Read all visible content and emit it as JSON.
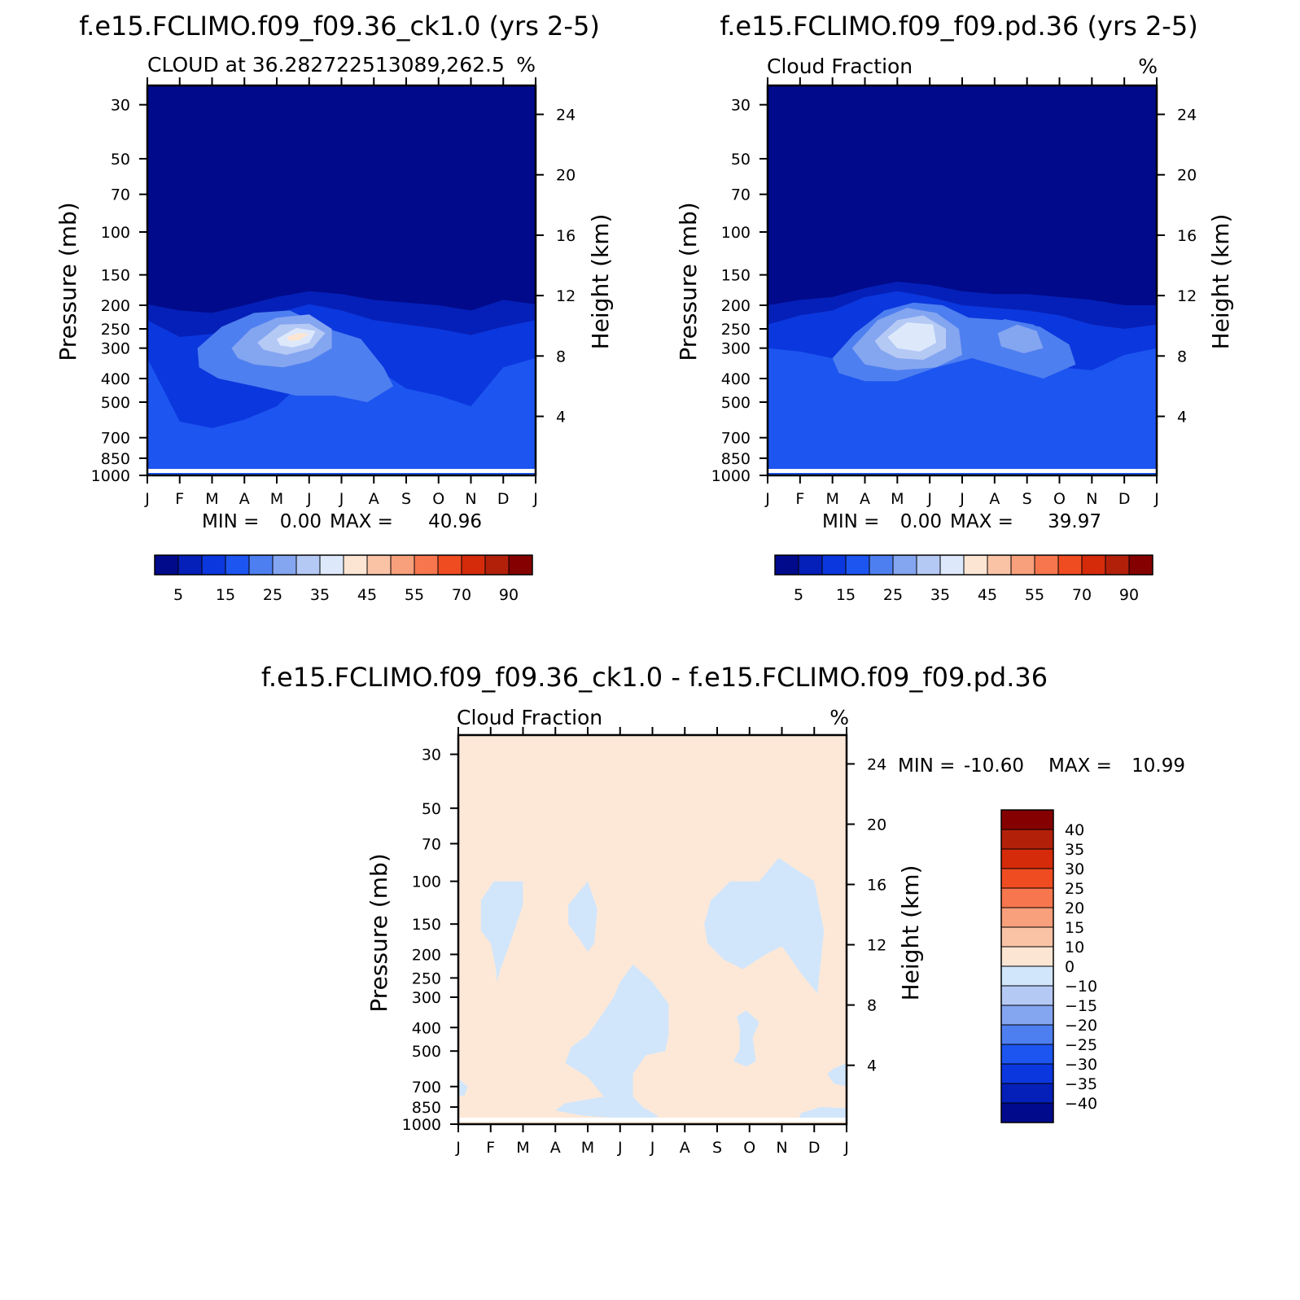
{
  "chart_data": [
    {
      "type": "heatmap",
      "title": "f.e15.FCLIMO.f09_f09.36_ck1.0 (yrs 2-5)",
      "subtitle_left": "CLOUD at 36.282722513089,262.5",
      "units": "%",
      "xlabel": "",
      "ylabel_left": "Pressure (mb)",
      "ylabel_right": "Height (km)",
      "x_ticks": [
        "J",
        "F",
        "M",
        "A",
        "M",
        "J",
        "J",
        "A",
        "S",
        "O",
        "N",
        "D",
        "J"
      ],
      "pressure_ticks": [
        "30",
        "50",
        "70",
        "100",
        "150",
        "200",
        "250",
        "300",
        "400",
        "500",
        "700",
        "850",
        "1000"
      ],
      "height_ticks": [
        "24",
        "20",
        "16",
        "12",
        "8",
        "4"
      ],
      "min_label": "MIN =",
      "min_value": "0.00",
      "max_label": "MAX =",
      "max_value": "40.96",
      "colorbar_labels": [
        "5",
        "15",
        "25",
        "35",
        "45",
        "55",
        "70",
        "90"
      ],
      "layers": [
        {
          "level": 5,
          "cycle": false,
          "p": [
            198,
            210,
            215,
            200,
            185,
            175,
            180,
            190,
            195,
            200,
            210,
            190,
            198
          ]
        },
        {
          "level": 10,
          "cycle": false,
          "p": [
            230,
            270,
            262,
            235,
            215,
            198,
            210,
            230,
            240,
            250,
            265,
            245,
            230
          ]
        },
        {
          "level": 15,
          "cycle": false,
          "p": [
            330,
            600,
            640,
            590,
            520,
            390,
            330,
            360,
            440,
            470,
            520,
            360,
            330
          ]
        },
        {
          "level": 20,
          "cycle": true,
          "pts": [
            [
              1.55,
              300
            ],
            [
              2.3,
              245
            ],
            [
              3.3,
              215
            ],
            [
              4.4,
              210
            ],
            [
              5.6,
              250
            ],
            [
              6.6,
              275
            ],
            [
              7.3,
              360
            ],
            [
              7.6,
              430
            ],
            [
              6.8,
              500
            ],
            [
              5.8,
              470
            ],
            [
              4.6,
              470
            ],
            [
              3.3,
              430
            ],
            [
              2.2,
              400
            ],
            [
              1.6,
              360
            ]
          ]
        },
        {
          "level": 25,
          "cycle": true,
          "pts": [
            [
              2.6,
              300
            ],
            [
              3.2,
              250
            ],
            [
              4.0,
              225
            ],
            [
              5.0,
              218
            ],
            [
              5.7,
              250
            ],
            [
              5.7,
              300
            ],
            [
              5.0,
              340
            ],
            [
              4.2,
              360
            ],
            [
              3.3,
              350
            ],
            [
              2.8,
              330
            ]
          ]
        },
        {
          "level": 30,
          "cycle": true,
          "pts": [
            [
              3.4,
              285
            ],
            [
              4.1,
              240
            ],
            [
              5.0,
              238
            ],
            [
              5.5,
              260
            ],
            [
              5.1,
              300
            ],
            [
              4.3,
              320
            ],
            [
              3.6,
              305
            ]
          ]
        },
        {
          "level": 35,
          "cycle": true,
          "pts": [
            [
              4.0,
              275
            ],
            [
              4.6,
              248
            ],
            [
              5.2,
              255
            ],
            [
              5.0,
              285
            ],
            [
              4.5,
              298
            ],
            [
              4.1,
              292
            ]
          ]
        },
        {
          "level": 40,
          "cycle": true,
          "pts": [
            [
              4.3,
              270
            ],
            [
              4.7,
              260
            ],
            [
              5.0,
              262
            ],
            [
              4.7,
              278
            ],
            [
              4.4,
              280
            ]
          ]
        }
      ]
    },
    {
      "type": "heatmap",
      "title": "f.e15.FCLIMO.f09_f09.pd.36 (yrs 2-5)",
      "subtitle_left": "Cloud Fraction",
      "units": "%",
      "xlabel": "",
      "ylabel_left": "Pressure (mb)",
      "ylabel_right": "Height (km)",
      "x_ticks": [
        "J",
        "F",
        "M",
        "A",
        "M",
        "J",
        "J",
        "A",
        "S",
        "O",
        "N",
        "D",
        "J"
      ],
      "pressure_ticks": [
        "30",
        "50",
        "70",
        "100",
        "150",
        "200",
        "250",
        "300",
        "400",
        "500",
        "700",
        "850",
        "1000"
      ],
      "height_ticks": [
        "24",
        "20",
        "16",
        "12",
        "8",
        "4"
      ],
      "min_label": "MIN =",
      "min_value": "0.00",
      "max_label": "MAX =",
      "max_value": "39.97",
      "colorbar_labels": [
        "5",
        "15",
        "25",
        "35",
        "45",
        "55",
        "70",
        "90"
      ],
      "layers": [
        {
          "level": 5,
          "cycle": false,
          "p": [
            200,
            190,
            185,
            170,
            160,
            165,
            175,
            180,
            180,
            185,
            190,
            200,
            200
          ]
        },
        {
          "level": 10,
          "cycle": false,
          "p": [
            240,
            220,
            210,
            185,
            175,
            185,
            200,
            205,
            210,
            220,
            240,
            250,
            240
          ]
        },
        {
          "level": 15,
          "cycle": false,
          "p": [
            300,
            310,
            330,
            310,
            300,
            260,
            290,
            330,
            340,
            360,
            370,
            320,
            300
          ]
        },
        {
          "level": 20,
          "cycle": true,
          "pts": [
            [
              2.0,
              330
            ],
            [
              2.7,
              260
            ],
            [
              3.6,
              210
            ],
            [
              4.5,
              195
            ],
            [
              5.4,
              200
            ],
            [
              6.2,
              225
            ],
            [
              7.3,
              230
            ],
            [
              8.4,
              245
            ],
            [
              9.3,
              290
            ],
            [
              9.5,
              350
            ],
            [
              8.5,
              400
            ],
            [
              7.3,
              360
            ],
            [
              6.3,
              330
            ],
            [
              5.2,
              360
            ],
            [
              4.0,
              410
            ],
            [
              3.0,
              410
            ],
            [
              2.2,
              380
            ]
          ]
        },
        {
          "level": 25,
          "cycle": true,
          "pts": [
            [
              2.6,
              300
            ],
            [
              3.4,
              230
            ],
            [
              4.3,
              205
            ],
            [
              5.2,
              215
            ],
            [
              5.9,
              250
            ],
            [
              6.0,
              320
            ],
            [
              5.2,
              360
            ],
            [
              4.0,
              370
            ],
            [
              3.0,
              350
            ]
          ]
        },
        {
          "level": 30,
          "cycle": true,
          "pts": [
            [
              3.3,
              280
            ],
            [
              4.0,
              230
            ],
            [
              4.8,
              220
            ],
            [
              5.5,
              250
            ],
            [
              5.5,
              300
            ],
            [
              4.8,
              335
            ],
            [
              4.0,
              330
            ],
            [
              3.5,
              305
            ]
          ]
        },
        {
          "level": 35,
          "cycle": true,
          "pts": [
            [
              3.7,
              270
            ],
            [
              4.3,
              235
            ],
            [
              5.1,
              240
            ],
            [
              5.2,
              285
            ],
            [
              4.7,
              310
            ],
            [
              4.0,
              300
            ]
          ]
        },
        {
          "level": 20,
          "cycle": true,
          "pts": [
            [
              6.5,
              270
            ],
            [
              7.3,
              228
            ],
            [
              8.2,
              240
            ],
            [
              8.9,
              280
            ],
            [
              8.7,
              330
            ],
            [
              7.6,
              340
            ],
            [
              6.7,
              310
            ]
          ]
        },
        {
          "level": 25,
          "cycle": true,
          "pts": [
            [
              7.1,
              260
            ],
            [
              7.7,
              240
            ],
            [
              8.3,
              255
            ],
            [
              8.5,
              300
            ],
            [
              7.9,
              315
            ],
            [
              7.2,
              295
            ]
          ]
        }
      ]
    },
    {
      "type": "heatmap",
      "title": "f.e15.FCLIMO.f09_f09.36_ck1.0 - f.e15.FCLIMO.f09_f09.pd.36",
      "subtitle_left": "Cloud Fraction",
      "units": "%",
      "xlabel": "",
      "ylabel_left": "Pressure (mb)",
      "ylabel_right": "Height (km)",
      "x_ticks": [
        "J",
        "F",
        "M",
        "A",
        "M",
        "J",
        "J",
        "A",
        "S",
        "O",
        "N",
        "D",
        "J"
      ],
      "pressure_ticks": [
        "30",
        "50",
        "70",
        "100",
        "150",
        "200",
        "250",
        "300",
        "400",
        "500",
        "700",
        "850",
        "1000"
      ],
      "height_ticks": [
        "24",
        "20",
        "16",
        "12",
        "8",
        "4"
      ],
      "min_label": "MIN =",
      "min_value": "-10.60",
      "max_label": "MAX =",
      "max_value": "10.99",
      "colorbar_labels": [
        "40",
        "35",
        "30",
        "25",
        "20",
        "15",
        "10",
        "0",
        "−10",
        "−15",
        "−20",
        "−25",
        "−30",
        "−35",
        "−40"
      ],
      "neg_regions": [
        [
          [
            0.7,
            120
          ],
          [
            1.1,
            100
          ],
          [
            2.0,
            100
          ],
          [
            2.0,
            125
          ],
          [
            1.6,
            180
          ],
          [
            1.3,
            230
          ],
          [
            1.2,
            260
          ],
          [
            1.15,
            225
          ],
          [
            1.0,
            180
          ],
          [
            0.7,
            160
          ]
        ],
        [
          [
            3.4,
            125
          ],
          [
            4.0,
            100
          ],
          [
            4.3,
            130
          ],
          [
            4.2,
            180
          ],
          [
            4.0,
            195
          ],
          [
            3.7,
            170
          ],
          [
            3.4,
            150
          ]
        ],
        [
          [
            7.8,
            120
          ],
          [
            8.4,
            100
          ],
          [
            9.3,
            100
          ],
          [
            9.9,
            80
          ],
          [
            11.0,
            100
          ],
          [
            11.3,
            160
          ],
          [
            11.1,
            290
          ],
          [
            10.6,
            240
          ],
          [
            10.0,
            185
          ],
          [
            9.5,
            200
          ],
          [
            8.8,
            230
          ],
          [
            8.2,
            210
          ],
          [
            7.7,
            180
          ],
          [
            7.6,
            150
          ]
        ],
        [
          [
            4.8,
            300
          ],
          [
            5.0,
            260
          ],
          [
            5.4,
            220
          ],
          [
            6.0,
            260
          ],
          [
            6.5,
            320
          ],
          [
            6.5,
            430
          ],
          [
            6.4,
            500
          ],
          [
            5.8,
            520
          ],
          [
            5.4,
            620
          ],
          [
            5.4,
            770
          ],
          [
            5.7,
            850
          ],
          [
            6.2,
            930
          ],
          [
            5.7,
            960
          ],
          [
            5.0,
            945
          ],
          [
            3.8,
            920
          ],
          [
            3.0,
            880
          ],
          [
            3.3,
            820
          ],
          [
            4.5,
            770
          ],
          [
            4.0,
            640
          ],
          [
            3.3,
            560
          ],
          [
            3.5,
            480
          ],
          [
            4.0,
            430
          ],
          [
            4.4,
            360
          ]
        ],
        [
          [
            8.6,
            360
          ],
          [
            8.9,
            340
          ],
          [
            9.3,
            380
          ],
          [
            9.1,
            440
          ],
          [
            9.2,
            550
          ],
          [
            8.9,
            580
          ],
          [
            8.5,
            550
          ],
          [
            8.7,
            490
          ],
          [
            8.7,
            400
          ]
        ],
        [
          [
            0,
            650
          ],
          [
            0.3,
            700
          ],
          [
            0.2,
            760
          ],
          [
            0,
            770
          ]
        ],
        [
          [
            11.6,
            590
          ],
          [
            12,
            560
          ],
          [
            12,
            700
          ],
          [
            11.6,
            680
          ],
          [
            11.4,
            620
          ]
        ],
        [
          [
            10.6,
            900
          ],
          [
            11.2,
            850
          ],
          [
            12,
            860
          ],
          [
            12,
            960
          ],
          [
            10.5,
            960
          ]
        ]
      ]
    }
  ]
}
